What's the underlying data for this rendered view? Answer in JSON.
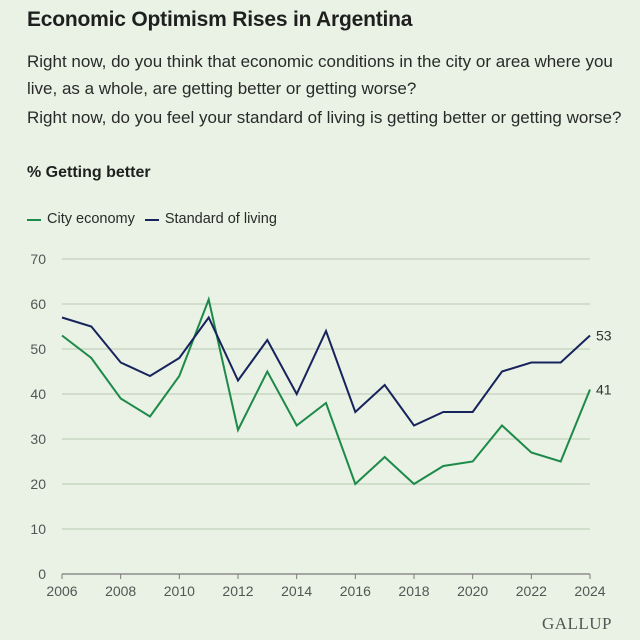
{
  "title": "Economic Optimism Rises in Argentina",
  "question1": "Right now, do you think that economic conditions in the city or area where you live, as a whole, are getting better or getting worse?",
  "question2": "Right now, do you feel your standard of living is getting better or getting worse?",
  "subtitle": "% Getting better",
  "logo": "GALLUP",
  "colors": {
    "city": "#1e8a4a",
    "living": "#17235c",
    "grid": "#b9c9b2",
    "axis": "#7a7a7a"
  },
  "chart_data": {
    "type": "line",
    "x": [
      2006,
      2007,
      2008,
      2009,
      2010,
      2011,
      2012,
      2013,
      2014,
      2015,
      2016,
      2017,
      2018,
      2019,
      2020,
      2021,
      2022,
      2023,
      2024
    ],
    "series": [
      {
        "name": "City economy",
        "values": [
          53,
          48,
          39,
          35,
          44,
          61,
          32,
          45,
          33,
          38,
          20,
          26,
          20,
          24,
          25,
          33,
          27,
          25,
          41
        ],
        "end_label": "41"
      },
      {
        "name": "Standard of living",
        "values": [
          57,
          55,
          47,
          44,
          48,
          57,
          43,
          52,
          40,
          54,
          36,
          42,
          33,
          36,
          36,
          45,
          47,
          47,
          53
        ],
        "end_label": "53"
      }
    ],
    "x_ticks": [
      "2006",
      "2008",
      "2010",
      "2012",
      "2014",
      "2016",
      "2018",
      "2020",
      "2022",
      "2024"
    ],
    "y_ticks": [
      "0",
      "10",
      "20",
      "30",
      "40",
      "50",
      "60",
      "70"
    ],
    "ylim": [
      0,
      70
    ],
    "xlim": [
      2006,
      2024
    ],
    "grid": true,
    "legend_placement": "top-left"
  }
}
